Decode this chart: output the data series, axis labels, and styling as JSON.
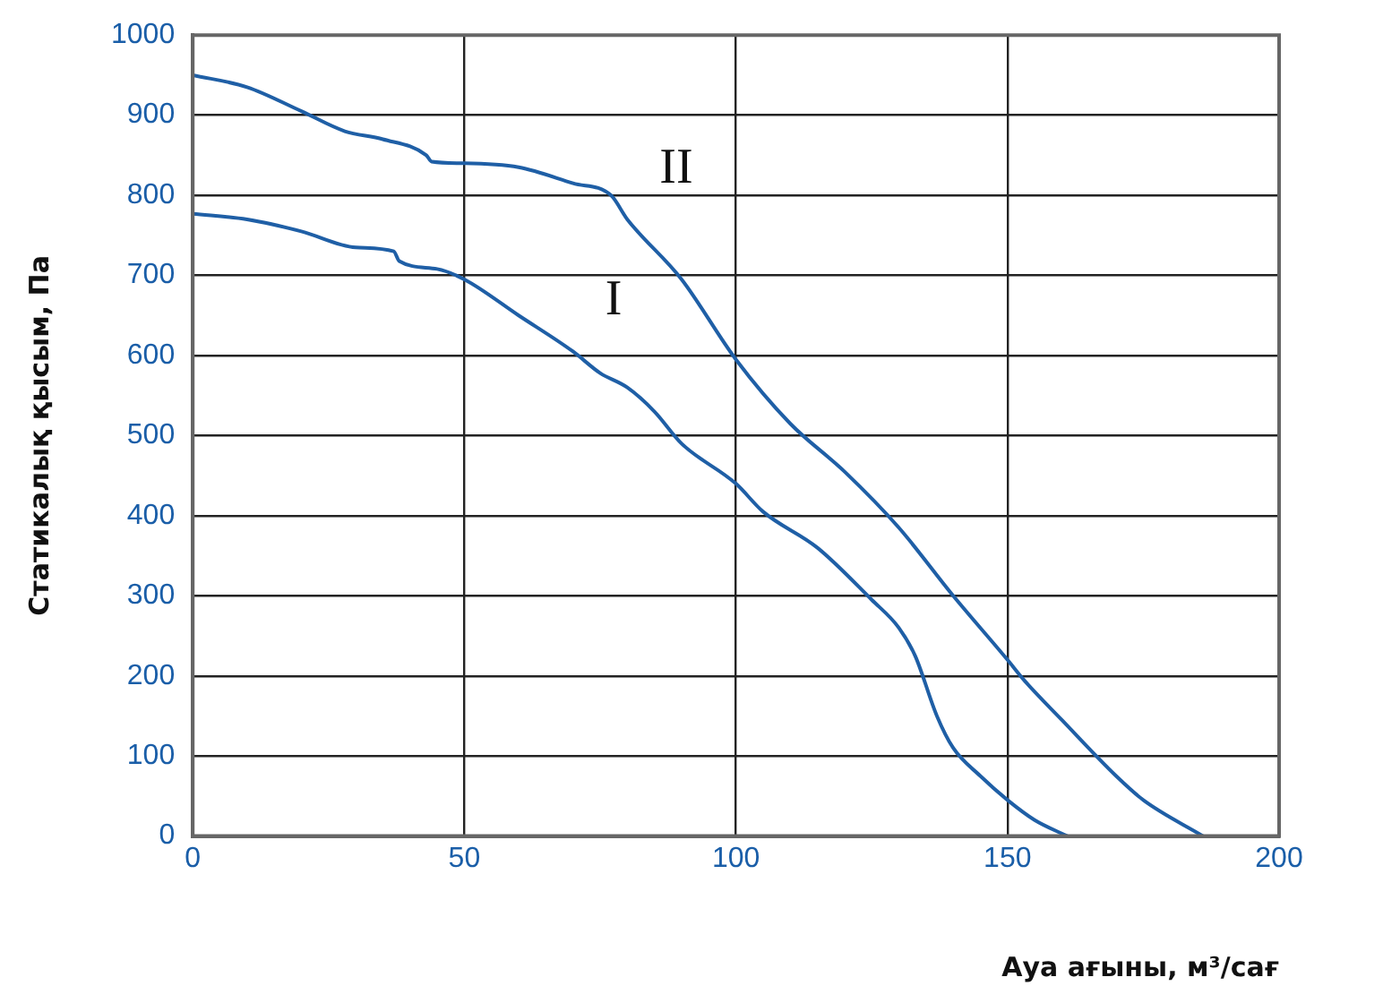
{
  "chart_data": {
    "type": "line",
    "xlabel": "Ауа ағыны, м³/сағ",
    "ylabel": "Статикалық қысым, Па",
    "xlim": [
      0,
      200
    ],
    "xticks": [
      0,
      50,
      100,
      150,
      200
    ],
    "ylim": [
      0,
      1000
    ],
    "yticks": [
      0,
      100,
      200,
      300,
      400,
      500,
      600,
      700,
      800,
      900,
      1000
    ],
    "grid": true,
    "legend": false,
    "marker": "none",
    "line_style": "solid",
    "series": [
      {
        "name": "I",
        "color": "#1f5fa6",
        "x": [
          0,
          10,
          20,
          30,
          37,
          38,
          45,
          50,
          60,
          70,
          75,
          80,
          85,
          90,
          100,
          105,
          115,
          125,
          130,
          133,
          137,
          140,
          145,
          150,
          155,
          161
        ],
        "values": [
          777,
          770,
          755,
          735,
          730,
          718,
          708,
          695,
          650,
          605,
          578,
          560,
          530,
          490,
          440,
          405,
          360,
          295,
          260,
          225,
          150,
          110,
          75,
          45,
          20,
          0
        ]
      },
      {
        "name": "II",
        "color": "#1f5fa6",
        "x": [
          0,
          10,
          20,
          28,
          35,
          43,
          44,
          50,
          60,
          70,
          77,
          80,
          90,
          100,
          110,
          120,
          130,
          140,
          150,
          153,
          160,
          170,
          175,
          186
        ],
        "values": [
          950,
          935,
          905,
          880,
          870,
          850,
          842,
          840,
          835,
          815,
          800,
          770,
          695,
          595,
          515,
          455,
          385,
          300,
          220,
          195,
          145,
          75,
          45,
          0
        ]
      }
    ]
  }
}
